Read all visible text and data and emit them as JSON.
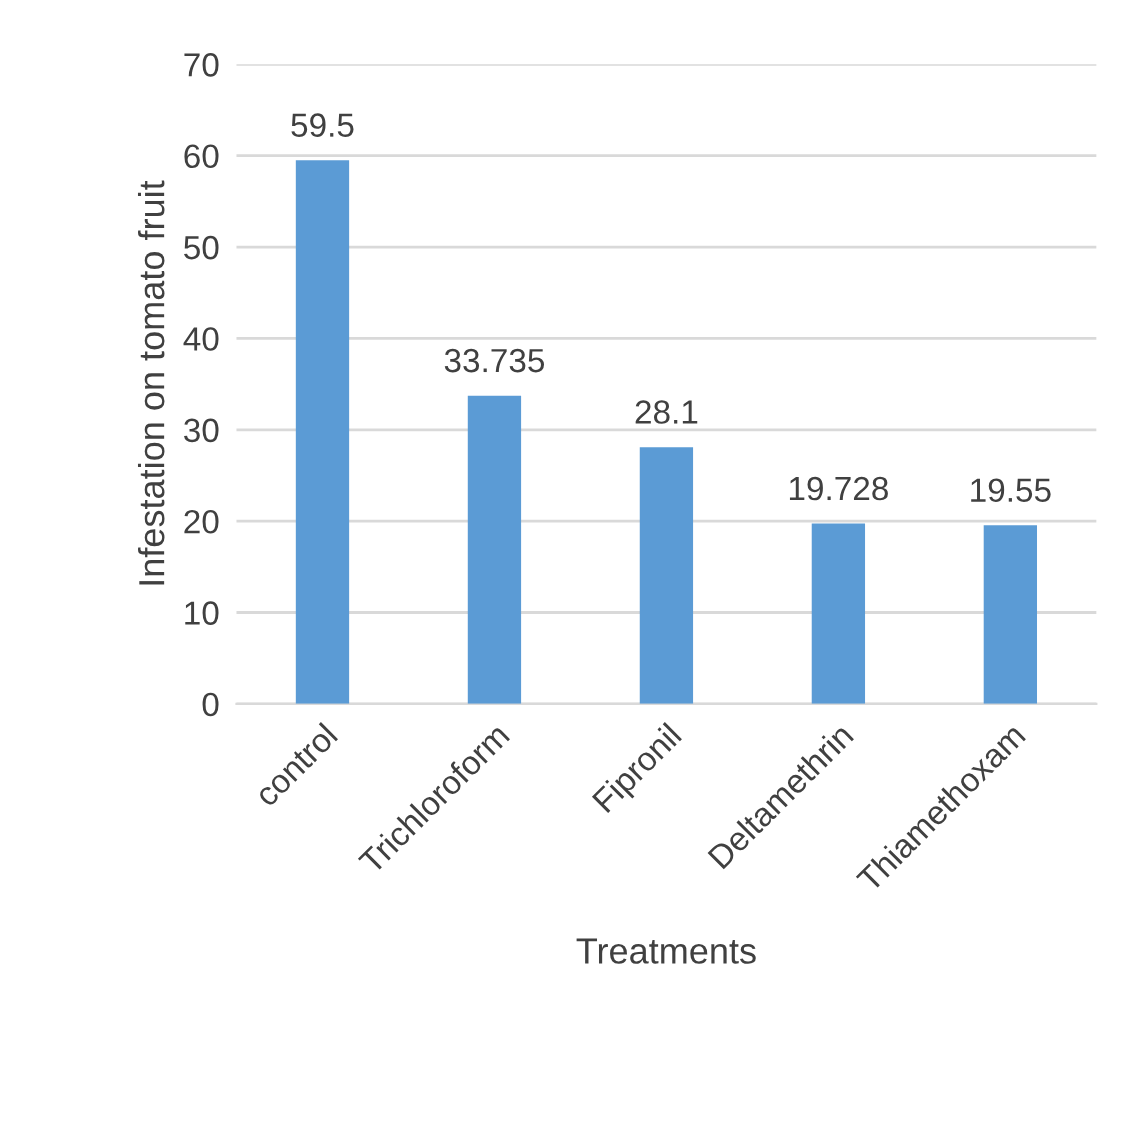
{
  "chart_data": {
    "type": "bar",
    "xlabel": "Treatments",
    "ylabel": "Infestation on tomato fruit",
    "categories": [
      "control",
      "Trichloroform",
      "Fipronil",
      "Deltamethrin",
      "Thiamethoxam"
    ],
    "values": [
      59.5,
      33.735,
      28.1,
      19.728,
      19.55
    ],
    "color": "#5b9bd5",
    "ylim": [
      0,
      70
    ],
    "yticks": [
      0,
      10,
      20,
      30,
      40,
      50,
      60,
      70
    ],
    "grid": "y",
    "data_labels": true,
    "legend": false
  }
}
